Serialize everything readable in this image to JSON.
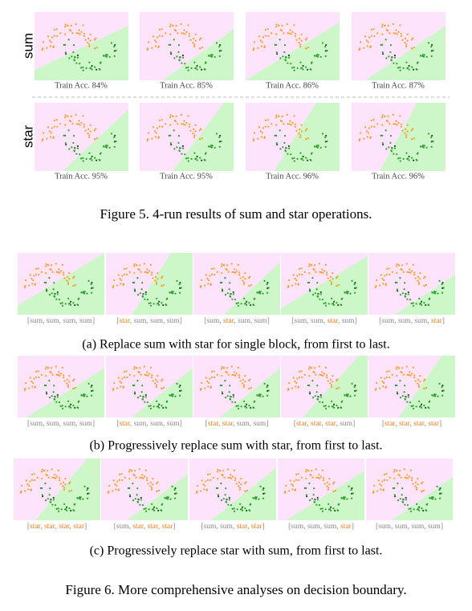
{
  "figure5": {
    "rows": [
      {
        "label": "sum",
        "panels": [
          "Train Acc. 84%",
          "Train Acc. 85%",
          "Train Acc. 86%",
          "Train Acc. 87%"
        ]
      },
      {
        "label": "star",
        "panels": [
          "Train Acc. 95%",
          "Train Acc. 95%",
          "Train Acc. 96%",
          "Train Acc. 96%"
        ]
      }
    ],
    "caption": "Figure 5. 4-run results of sum and star operations."
  },
  "figure6": {
    "open": "[",
    "sep": ", ",
    "close": "]",
    "subfigures": [
      {
        "panels": [
          {
            "ops": [
              "sum",
              "sum",
              "sum",
              "sum"
            ],
            "highlight": [
              false,
              false,
              false,
              false
            ]
          },
          {
            "ops": [
              "star",
              "sum",
              "sum",
              "sum"
            ],
            "highlight": [
              true,
              false,
              false,
              false
            ]
          },
          {
            "ops": [
              "sum",
              "star",
              "sum",
              "sum"
            ],
            "highlight": [
              false,
              true,
              false,
              false
            ]
          },
          {
            "ops": [
              "sum",
              "sum",
              "star",
              "sum"
            ],
            "highlight": [
              false,
              false,
              true,
              false
            ]
          },
          {
            "ops": [
              "sum",
              "sum",
              "sum",
              "star"
            ],
            "highlight": [
              false,
              false,
              false,
              true
            ]
          }
        ],
        "caption": "(a) Replace sum with star for single block, from first to last."
      },
      {
        "panels": [
          {
            "ops": [
              "sum",
              "sum",
              "sum",
              "sum"
            ],
            "highlight": [
              false,
              false,
              false,
              false
            ]
          },
          {
            "ops": [
              "star",
              "sum",
              "sum",
              "sum"
            ],
            "highlight": [
              true,
              false,
              false,
              false
            ]
          },
          {
            "ops": [
              "star",
              "star",
              "sum",
              "sum"
            ],
            "highlight": [
              true,
              true,
              false,
              false
            ]
          },
          {
            "ops": [
              "star",
              "star",
              "star",
              "sum"
            ],
            "highlight": [
              true,
              true,
              true,
              false
            ]
          },
          {
            "ops": [
              "star",
              "star",
              "star",
              "star"
            ],
            "highlight": [
              true,
              true,
              true,
              true
            ]
          }
        ],
        "caption": "(b) Progressively replace sum with star, from first to last."
      },
      {
        "panels": [
          {
            "ops": [
              "star",
              "star",
              "star",
              "star"
            ],
            "highlight": [
              true,
              true,
              true,
              true
            ]
          },
          {
            "ops": [
              "sum",
              "star",
              "star",
              "star"
            ],
            "highlight": [
              false,
              true,
              true,
              true
            ]
          },
          {
            "ops": [
              "sum",
              "sum",
              "star",
              "star"
            ],
            "highlight": [
              false,
              false,
              true,
              true
            ]
          },
          {
            "ops": [
              "sum",
              "sum",
              "sum",
              "star"
            ],
            "highlight": [
              false,
              false,
              false,
              true
            ]
          },
          {
            "ops": [
              "sum",
              "sum",
              "sum",
              "sum"
            ],
            "highlight": [
              false,
              false,
              false,
              false
            ]
          }
        ],
        "caption": "(c) Progressively replace star with sum, from first to last."
      }
    ],
    "caption": "Figure 6. More comprehensive analyses on decision boundary."
  }
}
